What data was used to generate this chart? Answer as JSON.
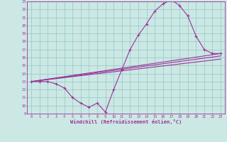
{
  "xlabel": "Windchill (Refroidissement éolien,°C)",
  "bg_color": "#cce8e4",
  "grid_color": "#99cccc",
  "line_color": "#993399",
  "xlim": [
    -0.5,
    23.5
  ],
  "ylim": [
    9,
    23
  ],
  "xticks": [
    0,
    1,
    2,
    3,
    4,
    5,
    6,
    7,
    8,
    9,
    10,
    11,
    12,
    13,
    14,
    15,
    16,
    17,
    18,
    19,
    20,
    21,
    22,
    23
  ],
  "yticks": [
    9,
    10,
    11,
    12,
    13,
    14,
    15,
    16,
    17,
    18,
    19,
    20,
    21,
    22,
    23
  ],
  "line1_x": [
    0,
    1,
    2,
    3,
    4,
    5,
    6,
    7,
    8,
    9,
    10,
    11,
    12,
    13,
    14,
    15,
    16,
    17,
    18,
    19,
    20,
    21,
    22,
    23
  ],
  "line1_y": [
    13,
    13,
    13,
    12.7,
    12.2,
    11.0,
    10.3,
    9.8,
    10.3,
    9.2,
    12.0,
    14.5,
    17.0,
    18.8,
    20.2,
    21.8,
    22.7,
    23.2,
    22.5,
    21.2,
    18.7,
    17.0,
    16.5,
    16.5
  ],
  "line2_x": [
    0,
    23
  ],
  "line2_y": [
    13.0,
    16.5
  ],
  "line3_x": [
    0,
    23
  ],
  "line3_y": [
    13.0,
    15.8
  ],
  "line4_x": [
    0,
    23
  ],
  "line4_y": [
    13.0,
    16.2
  ]
}
